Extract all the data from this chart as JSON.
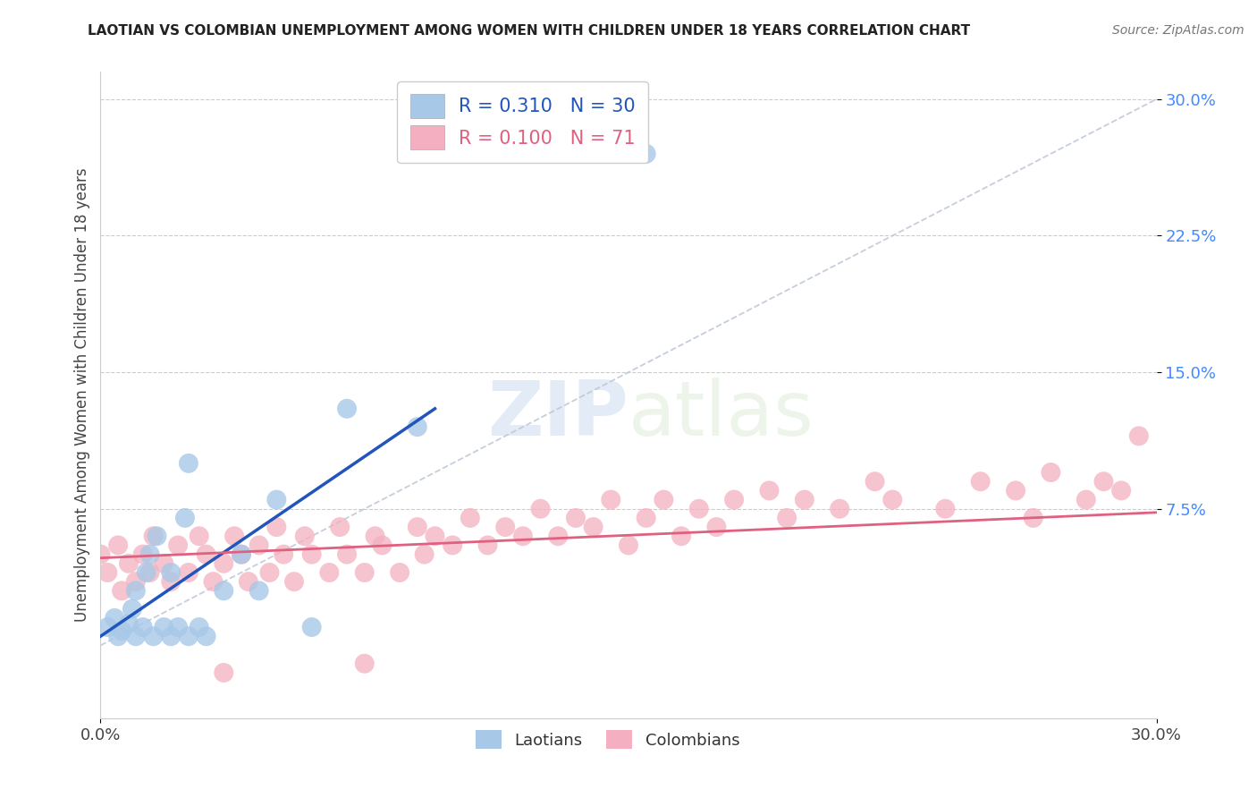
{
  "title": "LAOTIAN VS COLOMBIAN UNEMPLOYMENT AMONG WOMEN WITH CHILDREN UNDER 18 YEARS CORRELATION CHART",
  "source": "Source: ZipAtlas.com",
  "ylabel": "Unemployment Among Women with Children Under 18 years",
  "xlim": [
    0.0,
    0.3
  ],
  "ylim": [
    -0.04,
    0.315
  ],
  "laotian_color": "#a8c8e8",
  "colombian_color": "#f4b0c0",
  "laotian_line_color": "#2255bb",
  "colombian_line_color": "#e06080",
  "diagonal_color": "#c0c8d8",
  "background_color": "#ffffff",
  "legend_R1": "R = 0.310",
  "legend_N1": "N = 30",
  "legend_R2": "R = 0.100",
  "legend_N2": "N = 71",
  "laotian_x": [
    0.002,
    0.004,
    0.005,
    0.006,
    0.008,
    0.009,
    0.01,
    0.01,
    0.012,
    0.013,
    0.014,
    0.015,
    0.016,
    0.018,
    0.02,
    0.02,
    0.022,
    0.024,
    0.025,
    0.025,
    0.028,
    0.03,
    0.035,
    0.04,
    0.045,
    0.05,
    0.06,
    0.07,
    0.09,
    0.155
  ],
  "laotian_y": [
    0.01,
    0.015,
    0.005,
    0.008,
    0.012,
    0.02,
    0.005,
    0.03,
    0.01,
    0.04,
    0.05,
    0.005,
    0.06,
    0.01,
    0.005,
    0.04,
    0.01,
    0.07,
    0.005,
    0.1,
    0.01,
    0.005,
    0.03,
    0.05,
    0.03,
    0.08,
    0.01,
    0.13,
    0.12,
    0.27
  ],
  "colombian_x": [
    0.0,
    0.002,
    0.005,
    0.006,
    0.008,
    0.01,
    0.012,
    0.014,
    0.015,
    0.018,
    0.02,
    0.022,
    0.025,
    0.028,
    0.03,
    0.032,
    0.035,
    0.038,
    0.04,
    0.042,
    0.045,
    0.048,
    0.05,
    0.052,
    0.055,
    0.058,
    0.06,
    0.065,
    0.068,
    0.07,
    0.075,
    0.078,
    0.08,
    0.085,
    0.09,
    0.092,
    0.095,
    0.1,
    0.105,
    0.11,
    0.115,
    0.12,
    0.125,
    0.13,
    0.135,
    0.14,
    0.145,
    0.15,
    0.155,
    0.16,
    0.165,
    0.17,
    0.175,
    0.18,
    0.19,
    0.195,
    0.2,
    0.21,
    0.22,
    0.225,
    0.24,
    0.25,
    0.26,
    0.265,
    0.27,
    0.28,
    0.285,
    0.29,
    0.295,
    0.035,
    0.075
  ],
  "colombian_y": [
    0.05,
    0.04,
    0.055,
    0.03,
    0.045,
    0.035,
    0.05,
    0.04,
    0.06,
    0.045,
    0.035,
    0.055,
    0.04,
    0.06,
    0.05,
    0.035,
    0.045,
    0.06,
    0.05,
    0.035,
    0.055,
    0.04,
    0.065,
    0.05,
    0.035,
    0.06,
    0.05,
    0.04,
    0.065,
    0.05,
    0.04,
    0.06,
    0.055,
    0.04,
    0.065,
    0.05,
    0.06,
    0.055,
    0.07,
    0.055,
    0.065,
    0.06,
    0.075,
    0.06,
    0.07,
    0.065,
    0.08,
    0.055,
    0.07,
    0.08,
    0.06,
    0.075,
    0.065,
    0.08,
    0.085,
    0.07,
    0.08,
    0.075,
    0.09,
    0.08,
    0.075,
    0.09,
    0.085,
    0.07,
    0.095,
    0.08,
    0.09,
    0.085,
    0.115,
    -0.015,
    -0.01
  ],
  "laotian_trendline_x": [
    0.0,
    0.095
  ],
  "laotian_trendline_y": [
    0.005,
    0.13
  ],
  "colombian_trendline_x": [
    0.0,
    0.3
  ],
  "colombian_trendline_y": [
    0.048,
    0.073
  ]
}
